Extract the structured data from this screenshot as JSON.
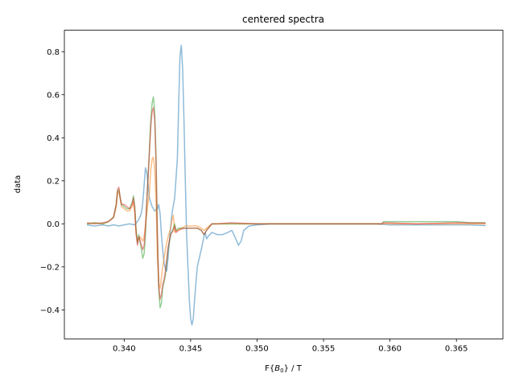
{
  "chart_data": {
    "type": "line",
    "title": "centered spectra",
    "xlabel_prefix": "F{",
    "xlabel_sym": "B",
    "xlabel_sub": "0",
    "xlabel_suffix": "} / T",
    "ylabel": "data",
    "xlim": [
      0.3355,
      0.3685
    ],
    "ylim": [
      -0.535,
      0.9
    ],
    "xticks": [
      0.34,
      0.345,
      0.35,
      0.355,
      0.36,
      0.365
    ],
    "xtick_labels": [
      "0.340",
      "0.345",
      "0.350",
      "0.355",
      "0.360",
      "0.365"
    ],
    "yticks": [
      -0.4,
      -0.2,
      0.0,
      0.2,
      0.4,
      0.6,
      0.8
    ],
    "ytick_labels": [
      "−0.4",
      "−0.2",
      "0.0",
      "0.2",
      "0.4",
      "0.6",
      "0.8"
    ],
    "grid": false,
    "series": [
      {
        "color": "#1f77b4",
        "points": [
          [
            0.3372,
            -0.005
          ],
          [
            0.3378,
            -0.01
          ],
          [
            0.3384,
            -0.005
          ],
          [
            0.3388,
            -0.01
          ],
          [
            0.3392,
            -0.005
          ],
          [
            0.3396,
            -0.01
          ],
          [
            0.34,
            -0.005
          ],
          [
            0.3404,
            0.0
          ],
          [
            0.3408,
            -0.005
          ],
          [
            0.3411,
            0.02
          ],
          [
            0.3413,
            0.05
          ],
          [
            0.3414,
            0.1
          ],
          [
            0.3415,
            0.18
          ],
          [
            0.3416,
            0.26
          ],
          [
            0.3417,
            0.24
          ],
          [
            0.3418,
            0.18
          ],
          [
            0.3419,
            0.12
          ],
          [
            0.3421,
            0.08
          ],
          [
            0.3423,
            0.06
          ],
          [
            0.3425,
            0.07
          ],
          [
            0.3426,
            0.09
          ],
          [
            0.3427,
            0.05
          ],
          [
            0.3428,
            -0.05
          ],
          [
            0.3429,
            -0.12
          ],
          [
            0.343,
            -0.18
          ],
          [
            0.3431,
            -0.21
          ],
          [
            0.3432,
            -0.22
          ],
          [
            0.3433,
            -0.16
          ],
          [
            0.3434,
            -0.08
          ],
          [
            0.3436,
            0.05
          ],
          [
            0.3438,
            0.12
          ],
          [
            0.344,
            0.3
          ],
          [
            0.3441,
            0.55
          ],
          [
            0.3442,
            0.78
          ],
          [
            0.3443,
            0.83
          ],
          [
            0.3444,
            0.72
          ],
          [
            0.3445,
            0.48
          ],
          [
            0.3446,
            0.2
          ],
          [
            0.3447,
            -0.05
          ],
          [
            0.3448,
            -0.2
          ],
          [
            0.3449,
            -0.35
          ],
          [
            0.345,
            -0.44
          ],
          [
            0.3451,
            -0.47
          ],
          [
            0.3452,
            -0.44
          ],
          [
            0.3453,
            -0.35
          ],
          [
            0.3455,
            -0.2
          ],
          [
            0.3458,
            -0.12
          ],
          [
            0.346,
            -0.06
          ],
          [
            0.3461,
            -0.04
          ],
          [
            0.3462,
            -0.07
          ],
          [
            0.3463,
            -0.06
          ],
          [
            0.3466,
            -0.04
          ],
          [
            0.347,
            -0.05
          ],
          [
            0.3474,
            -0.05
          ],
          [
            0.3478,
            -0.04
          ],
          [
            0.3481,
            -0.03
          ],
          [
            0.3484,
            -0.07
          ],
          [
            0.3486,
            -0.1
          ],
          [
            0.3488,
            -0.08
          ],
          [
            0.349,
            -0.03
          ],
          [
            0.3494,
            -0.01
          ],
          [
            0.35,
            -0.005
          ],
          [
            0.351,
            0.0
          ],
          [
            0.353,
            0.0
          ],
          [
            0.355,
            0.0
          ],
          [
            0.357,
            0.0
          ],
          [
            0.359,
            0.0
          ],
          [
            0.36,
            -0.005
          ],
          [
            0.362,
            -0.005
          ],
          [
            0.364,
            -0.005
          ],
          [
            0.366,
            -0.005
          ],
          [
            0.3672,
            -0.008
          ]
        ]
      },
      {
        "color": "#ff7f0e",
        "points": [
          [
            0.3372,
            0.0
          ],
          [
            0.3378,
            0.005
          ],
          [
            0.3384,
            0.0
          ],
          [
            0.3388,
            0.01
          ],
          [
            0.3392,
            0.03
          ],
          [
            0.3394,
            0.08
          ],
          [
            0.3395,
            0.14
          ],
          [
            0.3396,
            0.15
          ],
          [
            0.3397,
            0.12
          ],
          [
            0.3398,
            0.08
          ],
          [
            0.34,
            0.07
          ],
          [
            0.3402,
            0.06
          ],
          [
            0.3404,
            0.06
          ],
          [
            0.3406,
            0.08
          ],
          [
            0.3407,
            0.1
          ],
          [
            0.3408,
            0.05
          ],
          [
            0.3409,
            -0.04
          ],
          [
            0.341,
            -0.08
          ],
          [
            0.3412,
            -0.06
          ],
          [
            0.3414,
            -0.08
          ],
          [
            0.3415,
            -0.06
          ],
          [
            0.3417,
            0.05
          ],
          [
            0.3419,
            0.15
          ],
          [
            0.342,
            0.25
          ],
          [
            0.3421,
            0.3
          ],
          [
            0.3422,
            0.31
          ],
          [
            0.3423,
            0.25
          ],
          [
            0.3424,
            0.1
          ],
          [
            0.3425,
            -0.15
          ],
          [
            0.3426,
            -0.28
          ],
          [
            0.3427,
            -0.3
          ],
          [
            0.3428,
            -0.25
          ],
          [
            0.3429,
            -0.2
          ],
          [
            0.3431,
            -0.12
          ],
          [
            0.3433,
            -0.06
          ],
          [
            0.3435,
            -0.02
          ],
          [
            0.3436,
            0.02
          ],
          [
            0.3437,
            0.04
          ],
          [
            0.3438,
            -0.04
          ],
          [
            0.344,
            -0.03
          ],
          [
            0.3443,
            -0.02
          ],
          [
            0.3446,
            -0.01
          ],
          [
            0.345,
            -0.01
          ],
          [
            0.3455,
            -0.01
          ],
          [
            0.3458,
            -0.02
          ],
          [
            0.346,
            -0.03
          ],
          [
            0.3462,
            -0.02
          ],
          [
            0.3466,
            0.0
          ],
          [
            0.347,
            0.0
          ],
          [
            0.348,
            0.0
          ],
          [
            0.35,
            0.0
          ],
          [
            0.355,
            0.0
          ],
          [
            0.36,
            0.0
          ],
          [
            0.365,
            0.0
          ],
          [
            0.3672,
            0.0
          ]
        ]
      },
      {
        "color": "#2ca02c",
        "points": [
          [
            0.3372,
            0.0
          ],
          [
            0.3378,
            0.005
          ],
          [
            0.3384,
            0.0
          ],
          [
            0.3388,
            0.01
          ],
          [
            0.3392,
            0.03
          ],
          [
            0.3394,
            0.09
          ],
          [
            0.3395,
            0.15
          ],
          [
            0.3396,
            0.16
          ],
          [
            0.3397,
            0.12
          ],
          [
            0.3398,
            0.09
          ],
          [
            0.34,
            0.08
          ],
          [
            0.3402,
            0.07
          ],
          [
            0.3404,
            0.07
          ],
          [
            0.3406,
            0.1
          ],
          [
            0.3407,
            0.13
          ],
          [
            0.3408,
            0.08
          ],
          [
            0.3409,
            -0.03
          ],
          [
            0.341,
            -0.09
          ],
          [
            0.3411,
            -0.05
          ],
          [
            0.3413,
            -0.12
          ],
          [
            0.3414,
            -0.16
          ],
          [
            0.3415,
            -0.14
          ],
          [
            0.3416,
            -0.05
          ],
          [
            0.3417,
            0.1
          ],
          [
            0.3418,
            0.22
          ],
          [
            0.3419,
            0.35
          ],
          [
            0.342,
            0.48
          ],
          [
            0.3421,
            0.56
          ],
          [
            0.3422,
            0.59
          ],
          [
            0.3423,
            0.52
          ],
          [
            0.3424,
            0.3
          ],
          [
            0.3425,
            -0.05
          ],
          [
            0.3426,
            -0.3
          ],
          [
            0.3427,
            -0.39
          ],
          [
            0.3428,
            -0.37
          ],
          [
            0.3429,
            -0.3
          ],
          [
            0.343,
            -0.27
          ],
          [
            0.3431,
            -0.24
          ],
          [
            0.3433,
            -0.12
          ],
          [
            0.3435,
            -0.05
          ],
          [
            0.3437,
            -0.02
          ],
          [
            0.3438,
            0.0
          ],
          [
            0.3439,
            -0.03
          ],
          [
            0.3441,
            -0.02
          ],
          [
            0.3445,
            -0.02
          ],
          [
            0.345,
            -0.02
          ],
          [
            0.3455,
            -0.02
          ],
          [
            0.3458,
            -0.03
          ],
          [
            0.346,
            -0.05
          ],
          [
            0.3462,
            -0.03
          ],
          [
            0.3466,
            0.0
          ],
          [
            0.347,
            0.0
          ],
          [
            0.348,
            0.0
          ],
          [
            0.35,
            0.0
          ],
          [
            0.355,
            0.0
          ],
          [
            0.3594,
            0.0
          ],
          [
            0.3595,
            0.01
          ],
          [
            0.361,
            0.01
          ],
          [
            0.363,
            0.01
          ],
          [
            0.365,
            0.01
          ],
          [
            0.366,
            0.005
          ],
          [
            0.3672,
            0.005
          ]
        ]
      },
      {
        "color": "#d62728",
        "points": [
          [
            0.3372,
            0.005
          ],
          [
            0.3378,
            0.0
          ],
          [
            0.3384,
            0.005
          ],
          [
            0.3388,
            0.01
          ],
          [
            0.3392,
            0.03
          ],
          [
            0.3394,
            0.09
          ],
          [
            0.3395,
            0.16
          ],
          [
            0.3396,
            0.17
          ],
          [
            0.3397,
            0.12
          ],
          [
            0.3398,
            0.09
          ],
          [
            0.34,
            0.09
          ],
          [
            0.3402,
            0.08
          ],
          [
            0.3404,
            0.07
          ],
          [
            0.3406,
            0.09
          ],
          [
            0.3407,
            0.12
          ],
          [
            0.3408,
            0.06
          ],
          [
            0.3409,
            -0.05
          ],
          [
            0.341,
            -0.1
          ],
          [
            0.3411,
            -0.06
          ],
          [
            0.3413,
            -0.1
          ],
          [
            0.3414,
            -0.12
          ],
          [
            0.3415,
            -0.1
          ],
          [
            0.3416,
            -0.02
          ],
          [
            0.3417,
            0.1
          ],
          [
            0.3418,
            0.22
          ],
          [
            0.3419,
            0.33
          ],
          [
            0.342,
            0.45
          ],
          [
            0.3421,
            0.52
          ],
          [
            0.3422,
            0.54
          ],
          [
            0.3423,
            0.48
          ],
          [
            0.3424,
            0.28
          ],
          [
            0.3425,
            -0.06
          ],
          [
            0.3426,
            -0.29
          ],
          [
            0.3427,
            -0.35
          ],
          [
            0.3428,
            -0.33
          ],
          [
            0.3429,
            -0.28
          ],
          [
            0.343,
            -0.26
          ],
          [
            0.3431,
            -0.22
          ],
          [
            0.3433,
            -0.11
          ],
          [
            0.3435,
            -0.05
          ],
          [
            0.3437,
            -0.03
          ],
          [
            0.3438,
            -0.01
          ],
          [
            0.3439,
            -0.04
          ],
          [
            0.3441,
            -0.03
          ],
          [
            0.3445,
            -0.02
          ],
          [
            0.345,
            -0.02
          ],
          [
            0.3455,
            -0.02
          ],
          [
            0.3458,
            -0.03
          ],
          [
            0.346,
            -0.05
          ],
          [
            0.3462,
            -0.03
          ],
          [
            0.3466,
            0.0
          ],
          [
            0.347,
            0.0
          ],
          [
            0.348,
            0.005
          ],
          [
            0.35,
            0.0
          ],
          [
            0.355,
            0.0
          ],
          [
            0.3594,
            0.0
          ],
          [
            0.3595,
            0.005
          ],
          [
            0.362,
            0.0
          ],
          [
            0.365,
            0.005
          ],
          [
            0.3672,
            0.003
          ]
        ]
      }
    ]
  }
}
